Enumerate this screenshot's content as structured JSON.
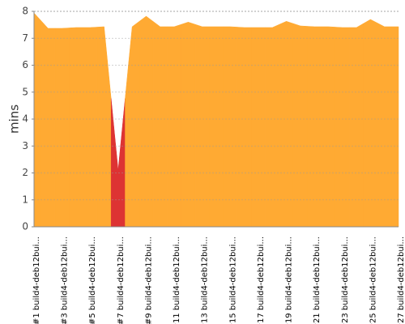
{
  "chart_data": {
    "type": "area",
    "y_label": "mins",
    "categories": [
      "#1 build4-deb12bui...",
      null,
      "#3 build4-deb12bui...",
      null,
      "#5 build4-deb12bui...",
      null,
      "#7 build4-deb12bui...",
      null,
      "#9 build4-deb12bui...",
      null,
      "#11 build4-deb12bui...",
      null,
      "#13 build4-deb12bui...",
      null,
      "#15 build4-deb12bui...",
      null,
      "#17 build4-deb12bui...",
      null,
      "#19 build4-deb12bui...",
      null,
      "#21 build4-deb12bui...",
      null,
      "#23 build4-deb12bui...",
      null,
      "#25 build4-deb12bui...",
      null,
      "#27 build4-deb12bui..."
    ],
    "values": [
      7.94,
      7.37,
      7.37,
      7.4,
      7.4,
      7.43,
      2.1,
      7.43,
      7.82,
      7.43,
      7.43,
      7.6,
      7.43,
      7.43,
      7.43,
      7.4,
      7.4,
      7.4,
      7.63,
      7.46,
      7.43,
      7.43,
      7.4,
      7.4,
      7.7,
      7.43,
      7.43
    ],
    "colors": [
      "#ffaa33",
      "#ffaa33",
      "#ffaa33",
      "#ffaa33",
      "#ffaa33",
      "#ffaa33",
      "#dd3333",
      "#ffaa33",
      "#ffaa33",
      "#ffaa33",
      "#ffaa33",
      "#ffaa33",
      "#ffaa33",
      "#ffaa33",
      "#ffaa33",
      "#ffaa33",
      "#ffaa33",
      "#ffaa33",
      "#ffaa33",
      "#ffaa33",
      "#ffaa33",
      "#ffaa33",
      "#ffaa33",
      "#ffaa33",
      "#ffaa33",
      "#ffaa33",
      "#ffaa33"
    ],
    "ylim": [
      0,
      8
    ],
    "yticks": [
      0,
      1,
      2,
      3,
      4,
      5,
      6,
      7,
      8
    ],
    "grid": true
  }
}
